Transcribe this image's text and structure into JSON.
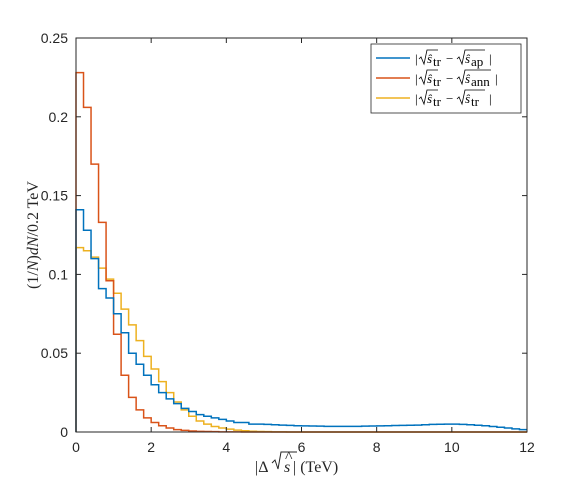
{
  "chart_data": {
    "type": "line",
    "style": "stairs",
    "xlabel": "|Δ√ŝ| (TeV)",
    "ylabel": "(1/N)dN/0.2 TeV",
    "xlim": [
      0,
      12
    ],
    "ylim": [
      0,
      0.25
    ],
    "xticks": [
      "0",
      "2",
      "4",
      "6",
      "8",
      "10",
      "12"
    ],
    "yticks": [
      "0",
      "0.05",
      "0.1",
      "0.15",
      "0.2",
      "0.25"
    ],
    "grid": false,
    "legend_position": "top-right",
    "bin_width": 0.2,
    "bin_edges_start": 0,
    "series": [
      {
        "name": "|√ŝ_tr − √ŝ_ap|",
        "color": "#0072BD",
        "values": [
          0.141,
          0.128,
          0.11,
          0.091,
          0.085,
          0.075,
          0.063,
          0.05,
          0.043,
          0.036,
          0.03,
          0.025,
          0.021,
          0.018,
          0.015,
          0.013,
          0.011,
          0.01,
          0.009,
          0.008,
          0.007,
          0.006,
          0.006,
          0.005,
          0.005,
          0.0048,
          0.0046,
          0.0044,
          0.0042,
          0.004,
          0.0039,
          0.0038,
          0.0037,
          0.0036,
          0.0036,
          0.0036,
          0.0036,
          0.0036,
          0.0037,
          0.0038,
          0.0039,
          0.004,
          0.0041,
          0.0042,
          0.0043,
          0.0044,
          0.0046,
          0.0048,
          0.0049,
          0.005,
          0.005,
          0.0048,
          0.0046,
          0.0043,
          0.004,
          0.0035,
          0.003,
          0.0025,
          0.002,
          0.0015
        ]
      },
      {
        "name": "|√ŝ_tr − √ŝ_ann|",
        "color": "#D95319",
        "values": [
          0.228,
          0.206,
          0.17,
          0.133,
          0.096,
          0.062,
          0.036,
          0.022,
          0.014,
          0.009,
          0.006,
          0.004,
          0.0025,
          0.0015,
          0.001,
          0.0006,
          0.0004,
          0.0003,
          0.0002,
          0.0001,
          0.0001,
          0.0001,
          0,
          0,
          0,
          0,
          0,
          0,
          0,
          0,
          0,
          0,
          0,
          0,
          0,
          0,
          0,
          0,
          0,
          0,
          0,
          0,
          0,
          0,
          0,
          0,
          0,
          0,
          0,
          0,
          0,
          0,
          0,
          0,
          0,
          0,
          0,
          0,
          0,
          0
        ]
      },
      {
        "name": "|√ŝ_tr − √ŝ_tr|",
        "color": "#EDB120",
        "values": [
          0.117,
          0.115,
          0.111,
          0.104,
          0.097,
          0.088,
          0.078,
          0.068,
          0.058,
          0.048,
          0.04,
          0.032,
          0.025,
          0.019,
          0.014,
          0.01,
          0.007,
          0.005,
          0.0035,
          0.0025,
          0.0018,
          0.0012,
          0.0008,
          0.0005,
          0.0003,
          0.0002,
          0.0001,
          0.0001,
          0,
          0,
          0,
          0,
          0,
          0,
          0,
          0,
          0,
          0,
          0,
          0,
          0,
          0,
          0,
          0,
          0,
          0,
          0,
          0,
          0,
          0,
          0,
          0,
          0,
          0,
          0,
          0,
          0,
          0,
          0,
          0
        ]
      }
    ]
  }
}
